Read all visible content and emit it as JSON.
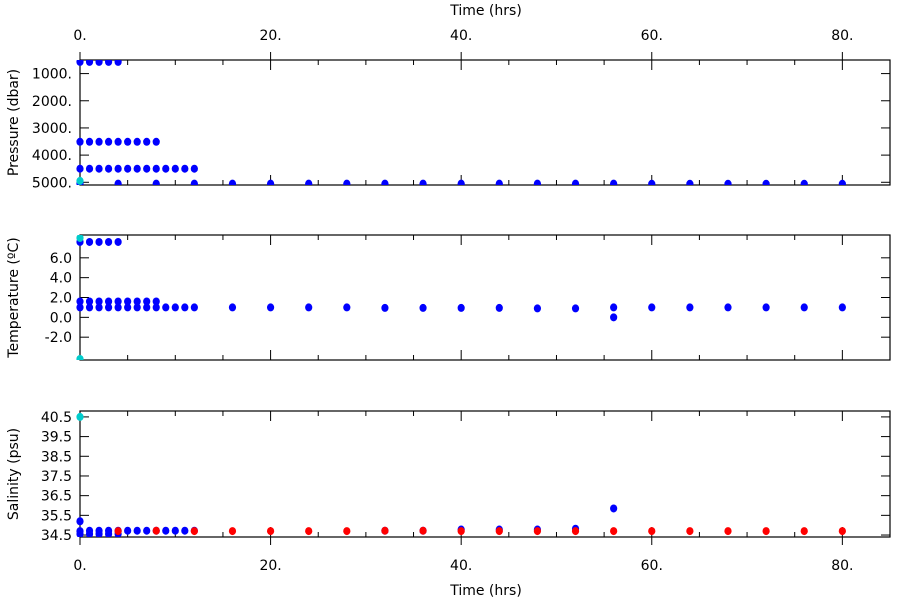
{
  "chart_data": {
    "type": "scatter",
    "x_axis": {
      "label": "Time (hrs)",
      "range": [
        0,
        85
      ],
      "ticks": [
        0,
        20,
        40,
        60,
        80
      ],
      "tick_labels": [
        "0.",
        "20.",
        "40.",
        "60.",
        "80."
      ]
    },
    "colors": {
      "blue": "#0000ff",
      "red": "#ff0000",
      "cyan": "#00cccc"
    },
    "panels": [
      {
        "ylabel": "Pressure (dbar)",
        "ylim": [
          5100,
          500
        ],
        "yticks": [
          1000,
          2000,
          3000,
          4000,
          5000
        ],
        "ytick_labels": [
          "1000.",
          "2000.",
          "3000.",
          "4000.",
          "5000."
        ],
        "series": [
          {
            "color": "blue",
            "points": [
              [
                0,
                570
              ],
              [
                1,
                570
              ],
              [
                2,
                570
              ],
              [
                3,
                570
              ],
              [
                4,
                570
              ],
              [
                0,
                3510
              ],
              [
                1,
                3510
              ],
              [
                2,
                3510
              ],
              [
                3,
                3510
              ],
              [
                4,
                3510
              ],
              [
                5,
                3510
              ],
              [
                6,
                3510
              ],
              [
                7,
                3510
              ],
              [
                8,
                3510
              ],
              [
                0,
                4500
              ],
              [
                1,
                4500
              ],
              [
                2,
                4500
              ],
              [
                3,
                4500
              ],
              [
                4,
                4500
              ],
              [
                5,
                4500
              ],
              [
                6,
                4500
              ],
              [
                7,
                4500
              ],
              [
                8,
                4500
              ],
              [
                9,
                4500
              ],
              [
                10,
                4500
              ],
              [
                11,
                4500
              ],
              [
                12,
                4500
              ],
              [
                0,
                5040
              ],
              [
                4,
                5050
              ],
              [
                8,
                5050
              ],
              [
                12,
                5050
              ],
              [
                16,
                5050
              ],
              [
                20,
                5050
              ],
              [
                24,
                5050
              ],
              [
                28,
                5050
              ],
              [
                32,
                5050
              ],
              [
                36,
                5050
              ],
              [
                40,
                5050
              ],
              [
                44,
                5050
              ],
              [
                48,
                5050
              ],
              [
                52,
                5050
              ],
              [
                56,
                5050
              ],
              [
                60,
                5055
              ],
              [
                64,
                5055
              ],
              [
                68,
                5055
              ],
              [
                72,
                5055
              ],
              [
                76,
                5055
              ],
              [
                80,
                5055
              ]
            ]
          },
          {
            "color": "cyan",
            "points": [
              [
                0,
                4950
              ]
            ]
          }
        ]
      },
      {
        "ylabel": "Temperature (ºC)",
        "ylim": [
          -4.3,
          8.3
        ],
        "yticks": [
          -2,
          0,
          2,
          4,
          6
        ],
        "ytick_labels": [
          "-2.0",
          "0.0",
          "2.0",
          "4.0",
          "6.0"
        ],
        "series": [
          {
            "color": "blue",
            "points": [
              [
                0,
                7.6
              ],
              [
                1,
                7.6
              ],
              [
                2,
                7.6
              ],
              [
                3,
                7.6
              ],
              [
                4,
                7.6
              ],
              [
                0,
                1.6
              ],
              [
                1,
                1.6
              ],
              [
                2,
                1.6
              ],
              [
                3,
                1.6
              ],
              [
                4,
                1.6
              ],
              [
                5,
                1.6
              ],
              [
                6,
                1.6
              ],
              [
                7,
                1.6
              ],
              [
                8,
                1.6
              ],
              [
                0,
                1.0
              ],
              [
                1,
                1.0
              ],
              [
                2,
                1.0
              ],
              [
                3,
                1.0
              ],
              [
                4,
                1.0
              ],
              [
                5,
                1.0
              ],
              [
                6,
                1.0
              ],
              [
                7,
                1.0
              ],
              [
                8,
                1.0
              ],
              [
                9,
                1.0
              ],
              [
                10,
                1.0
              ],
              [
                11,
                1.0
              ],
              [
                12,
                1.0
              ],
              [
                16,
                1.0
              ],
              [
                20,
                1.0
              ],
              [
                24,
                1.0
              ],
              [
                28,
                1.0
              ],
              [
                32,
                0.95
              ],
              [
                36,
                0.95
              ],
              [
                40,
                0.95
              ],
              [
                44,
                0.95
              ],
              [
                48,
                0.9
              ],
              [
                52,
                0.9
              ],
              [
                56,
                1.0
              ],
              [
                60,
                1.0
              ],
              [
                64,
                1.0
              ],
              [
                68,
                1.0
              ],
              [
                72,
                1.0
              ],
              [
                76,
                1.0
              ],
              [
                80,
                1.0
              ],
              [
                56,
                0.0
              ]
            ]
          },
          {
            "color": "cyan",
            "points": [
              [
                0,
                8.0
              ],
              [
                0,
                -4.2
              ]
            ]
          }
        ]
      },
      {
        "ylabel": "Salinity (psu)",
        "ylim": [
          34.4,
          40.8
        ],
        "yticks": [
          34.5,
          35.5,
          36.5,
          37.5,
          38.5,
          39.5,
          40.5
        ],
        "ytick_labels": [
          "34.5",
          "35.5",
          "36.5",
          "37.5",
          "38.5",
          "39.5",
          "40.5"
        ],
        "series": [
          {
            "color": "blue",
            "points": [
              [
                0,
                35.2
              ],
              [
                0,
                34.7
              ],
              [
                1,
                34.72
              ],
              [
                2,
                34.72
              ],
              [
                3,
                34.72
              ],
              [
                4,
                34.72
              ],
              [
                5,
                34.72
              ],
              [
                6,
                34.72
              ],
              [
                7,
                34.72
              ],
              [
                8,
                34.72
              ],
              [
                9,
                34.72
              ],
              [
                10,
                34.72
              ],
              [
                11,
                34.72
              ],
              [
                12,
                34.72
              ],
              [
                0,
                34.55
              ],
              [
                1,
                34.55
              ],
              [
                2,
                34.55
              ],
              [
                3,
                34.55
              ],
              [
                4,
                34.55
              ],
              [
                32,
                34.72
              ],
              [
                36,
                34.72
              ],
              [
                40,
                34.78
              ],
              [
                44,
                34.78
              ],
              [
                48,
                34.78
              ],
              [
                52,
                34.82
              ],
              [
                56,
                35.85
              ]
            ]
          },
          {
            "color": "red",
            "points": [
              [
                4,
                34.7
              ],
              [
                8,
                34.72
              ],
              [
                12,
                34.7
              ],
              [
                16,
                34.7
              ],
              [
                20,
                34.7
              ],
              [
                24,
                34.7
              ],
              [
                28,
                34.7
              ],
              [
                32,
                34.72
              ],
              [
                36,
                34.72
              ],
              [
                40,
                34.7
              ],
              [
                44,
                34.7
              ],
              [
                48,
                34.7
              ],
              [
                52,
                34.7
              ],
              [
                56,
                34.7
              ],
              [
                60,
                34.7
              ],
              [
                64,
                34.7
              ],
              [
                68,
                34.7
              ],
              [
                72,
                34.7
              ],
              [
                76,
                34.7
              ],
              [
                80,
                34.7
              ]
            ]
          },
          {
            "color": "cyan",
            "points": [
              [
                0,
                40.5
              ]
            ]
          }
        ]
      }
    ]
  }
}
